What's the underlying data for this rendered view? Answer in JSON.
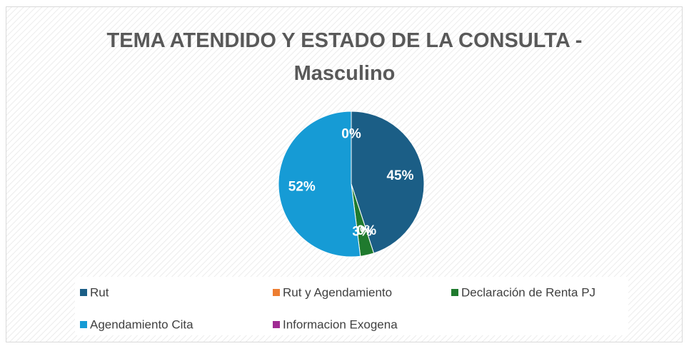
{
  "chart_data": {
    "type": "pie",
    "title": "TEMA ATENDIDO Y ESTADO DE LA CONSULTA - Masculino",
    "categories": [
      "Rut",
      "Rut y Agendamiento",
      "Declaración de Renta PJ",
      "Agendamiento Cita",
      "Informacion Exogena"
    ],
    "values": [
      45,
      0,
      3,
      52,
      0
    ],
    "value_labels": [
      "45%",
      "0%",
      "3%",
      "52%",
      "0%"
    ],
    "colors": [
      "#1b5e86",
      "#ed7d31",
      "#1f7a2e",
      "#169bd5",
      "#a02b93"
    ],
    "legend": "bottom"
  }
}
